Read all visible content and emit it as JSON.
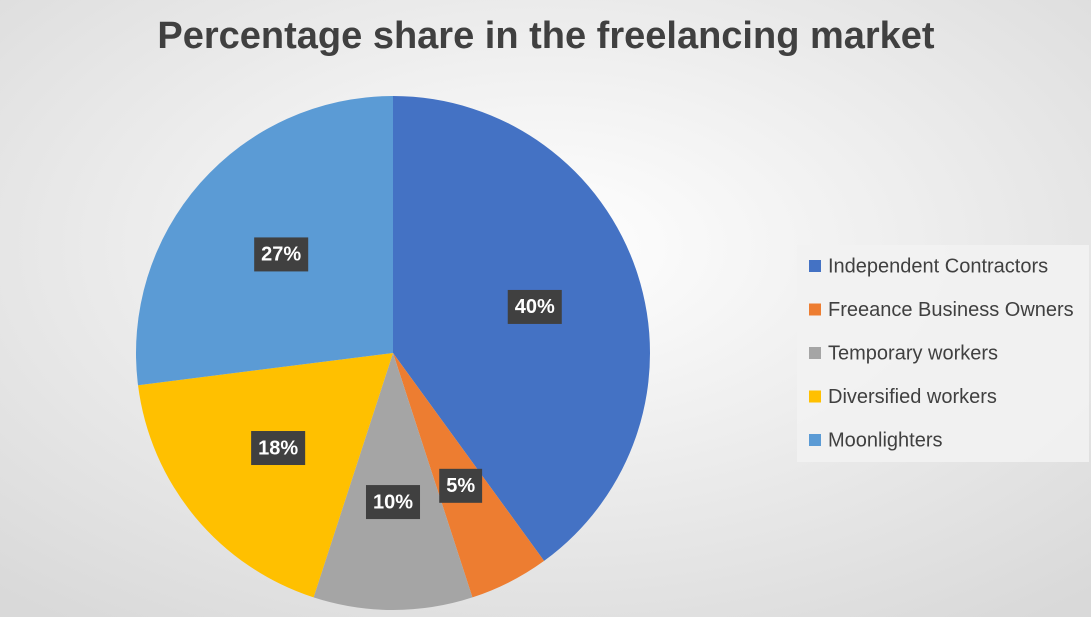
{
  "chart_data": {
    "type": "pie",
    "title": "Percentage share in the freelancing market",
    "categories": [
      "Independent Contractors",
      "Freeance Business Owners",
      "Temporary workers",
      "Diversified workers",
      "Moonlighters"
    ],
    "values": [
      40,
      5,
      10,
      18,
      27
    ],
    "value_labels": [
      "40%",
      "5%",
      "10%",
      "18%",
      "27%"
    ],
    "colors": [
      "#4472c4",
      "#ed7d31",
      "#a5a5a5",
      "#ffc000",
      "#5b9bd5"
    ],
    "legend": "right"
  }
}
